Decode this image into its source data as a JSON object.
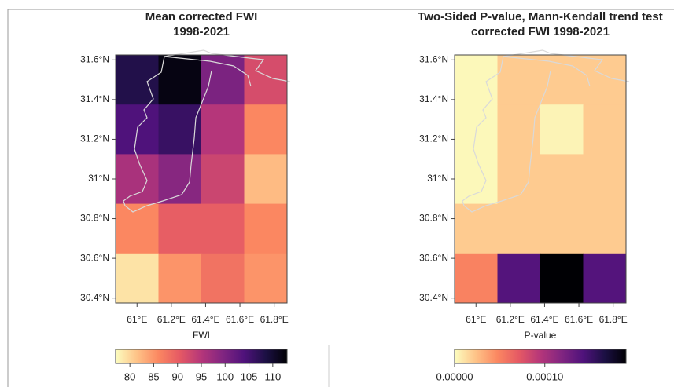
{
  "chart_data": [
    {
      "type": "heatmap",
      "title": [
        "Mean corrected FWI",
        "1998-2021"
      ],
      "xlabel": "FWI",
      "x": [
        61,
        61.25,
        61.5,
        61.75
      ],
      "y": [
        31.5,
        31.25,
        31,
        30.75,
        30.5
      ],
      "values": [
        [
          108,
          112,
          100,
          92
        ],
        [
          104,
          106,
          95,
          86
        ],
        [
          96,
          99,
          93,
          82
        ],
        [
          86,
          90,
          90,
          86
        ],
        [
          79,
          85,
          88,
          85
        ]
      ],
      "xlim": [
        60.875,
        61.875
      ],
      "ylim": [
        30.375,
        31.625
      ],
      "xticks": [
        {
          "value": 61,
          "label": "61°E"
        },
        {
          "value": 61.2,
          "label": "61.2°E"
        },
        {
          "value": 61.4,
          "label": "61.4°E"
        },
        {
          "value": 61.6,
          "label": "61.6°E"
        },
        {
          "value": 61.8,
          "label": "61.8°E"
        }
      ],
      "yticks": [
        {
          "value": 30.4,
          "label": "30.4°N"
        },
        {
          "value": 30.6,
          "label": "30.6°N"
        },
        {
          "value": 30.8,
          "label": "30.8°N"
        },
        {
          "value": 31,
          "label": "31°N"
        },
        {
          "value": 31.2,
          "label": "31.2°N"
        },
        {
          "value": 31.4,
          "label": "31.4°N"
        },
        {
          "value": 31.6,
          "label": "31.6°N"
        }
      ],
      "colors": [
        "#fcfdbf",
        "#fec287",
        "#fb8761",
        "#e55964",
        "#b5367a",
        "#812581",
        "#4f127b",
        "#1c1044",
        "#000004"
      ],
      "clim": [
        77,
        113
      ],
      "cticks": [
        80,
        85,
        90,
        95,
        100,
        105,
        110
      ]
    },
    {
      "type": "heatmap",
      "title": [
        "Two-Sided P-value, Mann-Kendall trend test",
        "corrected FWI 1998-2021"
      ],
      "xlabel": "P-value",
      "x": [
        61,
        61.25,
        61.5,
        61.75
      ],
      "y": [
        31.5,
        31.25,
        31,
        30.75,
        30.5
      ],
      "values": [
        [
          2e-06,
          2e-05,
          2e-05,
          2e-05
        ],
        [
          2e-06,
          2e-05,
          4e-06,
          2e-05
        ],
        [
          2e-06,
          2e-05,
          2e-05,
          2e-05
        ],
        [
          2e-05,
          2e-05,
          2e-05,
          2e-05
        ],
        [
          5e-05,
          0.00014,
          0.00019,
          0.00014
        ]
      ],
      "xlim": [
        60.875,
        61.875
      ],
      "ylim": [
        30.375,
        31.625
      ],
      "xticks": [
        {
          "value": 61,
          "label": "61°E"
        },
        {
          "value": 61.2,
          "label": "61.2°E"
        },
        {
          "value": 61.4,
          "label": "61.4°E"
        },
        {
          "value": 61.6,
          "label": "61.6°E"
        },
        {
          "value": 61.8,
          "label": "61.8°E"
        }
      ],
      "yticks": [
        {
          "value": 30.4,
          "label": "30.4°N"
        },
        {
          "value": 30.6,
          "label": "30.6°N"
        },
        {
          "value": 30.8,
          "label": "30.8°N"
        },
        {
          "value": 31,
          "label": "31°N"
        },
        {
          "value": 31.2,
          "label": "31.2°N"
        },
        {
          "value": 31.4,
          "label": "31.4°N"
        },
        {
          "value": 31.6,
          "label": "31.6°N"
        }
      ],
      "colors": [
        "#fcfdbf",
        "#fec287",
        "#fb8761",
        "#e55964",
        "#b5367a",
        "#812581",
        "#4f127b",
        "#1c1044",
        "#000004"
      ],
      "clim": [
        0,
        0.00019
      ],
      "cticks": [
        {
          "value": 0,
          "label": "0.00000"
        },
        {
          "value": 0.0001,
          "label": "0.00010"
        }
      ]
    }
  ]
}
